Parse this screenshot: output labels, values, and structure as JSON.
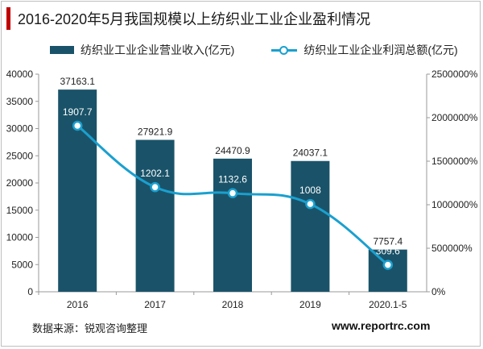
{
  "title": "2016-2020年5月我国规模以上纺织业工业企业盈利情况",
  "source": "数据来源：锐观咨询整理",
  "website": "www.reportrc.com",
  "colors": {
    "bar": "#1a5369",
    "line": "#1aa0cf",
    "title_accent": "#c00000"
  },
  "chart_data": {
    "type": "bar",
    "categories": [
      "2016",
      "2017",
      "2018",
      "2019",
      "2020.1-5"
    ],
    "series": [
      {
        "name": "纺织业工业企业营业收入(亿元)",
        "type": "bar",
        "axis": "left",
        "values": [
          37163.1,
          27921.9,
          24470.9,
          24037.1,
          7757.4
        ],
        "labels": [
          "37163.1",
          "27921.9",
          "24470.9",
          "24037.1",
          "7757.4"
        ]
      },
      {
        "name": "纺织业工业企业利润总额(亿元)",
        "type": "line",
        "axis": "right",
        "values": [
          1907.7,
          1202.1,
          1132.6,
          1008,
          309.6
        ],
        "labels": [
          "1907.7",
          "1202.1",
          "1132.6",
          "1008",
          "309.6"
        ]
      }
    ],
    "y_left": {
      "range": [
        0,
        40000
      ],
      "ticks": [
        "0",
        "5000",
        "10000",
        "15000",
        "20000",
        "25000",
        "30000",
        "35000",
        "40000"
      ]
    },
    "y_right": {
      "range": [
        0,
        2500
      ],
      "ticks": [
        "0%",
        "500000%",
        "1000000%",
        "1500000%",
        "2000000%",
        "2500000%"
      ]
    },
    "grid": false,
    "legend_position": "top"
  }
}
